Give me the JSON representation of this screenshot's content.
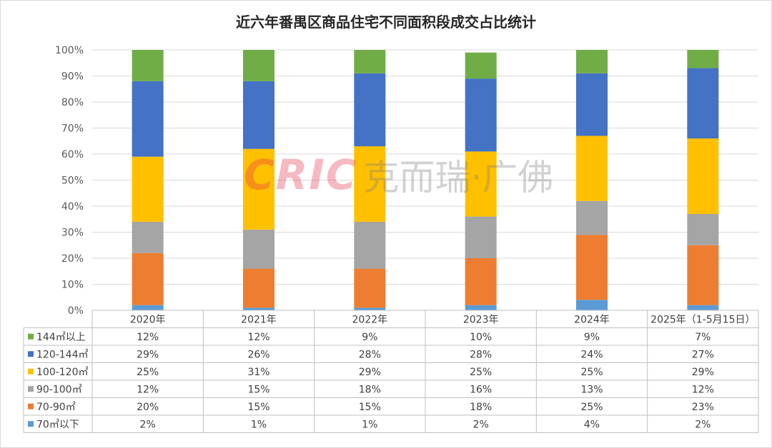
{
  "chart_data": {
    "type": "bar",
    "stacked": true,
    "normalized_percent": true,
    "title": "近六年番禺区商品住宅不同面积段成交占比统计",
    "categories": [
      "2020年",
      "2021年",
      "2022年",
      "2023年",
      "2024年",
      "2025年（1-5月15日）"
    ],
    "y_ticks": [
      "0%",
      "10%",
      "20%",
      "30%",
      "40%",
      "50%",
      "60%",
      "70%",
      "80%",
      "90%",
      "100%"
    ],
    "ylim": [
      0,
      100
    ],
    "grid": true,
    "legend_position": "left of data table",
    "series": [
      {
        "name": "70㎡以下",
        "color": "#5b9bd5",
        "values": [
          2,
          1,
          1,
          2,
          4,
          2
        ],
        "labels": [
          "2%",
          "1%",
          "1%",
          "2%",
          "4%",
          "2%"
        ]
      },
      {
        "name": "70-90㎡",
        "color": "#ed7d31",
        "values": [
          20,
          15,
          15,
          18,
          25,
          23
        ],
        "labels": [
          "20%",
          "15%",
          "15%",
          "18%",
          "25%",
          "23%"
        ]
      },
      {
        "name": "90-100㎡",
        "color": "#a5a5a5",
        "values": [
          12,
          15,
          18,
          16,
          13,
          12
        ],
        "labels": [
          "12%",
          "15%",
          "18%",
          "16%",
          "13%",
          "12%"
        ]
      },
      {
        "name": "100-120㎡",
        "color": "#ffc000",
        "values": [
          25,
          31,
          29,
          25,
          25,
          29
        ],
        "labels": [
          "25%",
          "31%",
          "29%",
          "25%",
          "25%",
          "29%"
        ]
      },
      {
        "name": "120-144㎡",
        "color": "#4472c4",
        "values": [
          29,
          26,
          28,
          28,
          24,
          27
        ],
        "labels": [
          "29%",
          "26%",
          "28%",
          "28%",
          "24%",
          "27%"
        ]
      },
      {
        "name": "144㎡以上",
        "color": "#70ad47",
        "values": [
          12,
          12,
          9,
          10,
          9,
          7
        ],
        "labels": [
          "12%",
          "12%",
          "9%",
          "10%",
          "9%",
          "7%"
        ]
      }
    ],
    "table_row_order": [
      "144㎡以上",
      "120-144㎡",
      "100-120㎡",
      "90-100㎡",
      "70-90㎡",
      "70㎡以下"
    ]
  },
  "watermark": {
    "logo": "CRIC",
    "text": "克而瑞·广佛"
  }
}
